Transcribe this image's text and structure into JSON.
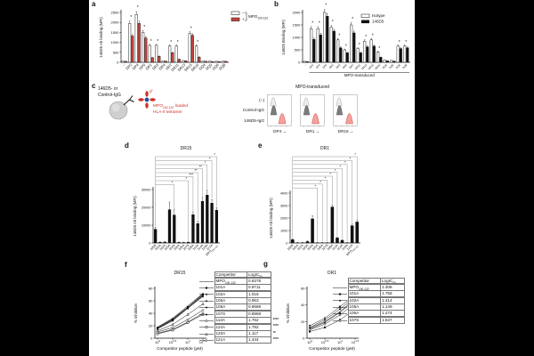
{
  "colors": {
    "bar_red": "#c8453d",
    "flow_red_fill": "#f5a09b",
    "flow_red_stroke": "#d05048",
    "flow_gray_fill": "#7d7d7d",
    "flow_gray_light": "#ededed",
    "tetramer_red": "#cf2e27",
    "tetramer_blue": "#1f4e9c",
    "axis": "#111111",
    "bracket_gray": "#777777"
  },
  "panels": {
    "a": {
      "letter": "a",
      "legend": {
        "minus": "−",
        "plus": "+",
        "bracket": "MPO_{100-132}"
      }
    },
    "b": {
      "letter": "b"
    },
    "c": {
      "letter": "c",
      "ab_label": "146D5- or\nControl-IgG",
      "tetramer_line1": "MPO_{100-132} loaded",
      "tetramer_line2": "HLA-II tetramer",
      "flow": {
        "header": "MPO-transduced",
        "rows": [
          "(−)",
          "Control-IgG",
          "146D5-IgG"
        ],
        "xlabels": [
          "DP4",
          "DR1",
          "DR15"
        ],
        "arrow": "→"
      }
    },
    "d": {
      "letter": "d"
    },
    "e": {
      "letter": "e"
    },
    "f": {
      "letter": "f"
    },
    "g": {
      "letter": "g"
    }
  },
  "chart_data": [
    {
      "id": "a",
      "type": "bar",
      "title": "",
      "ylabel": "146D5 Ab binding (MFI)",
      "ylim": [
        0,
        2500
      ],
      "yticks": [
        0,
        500,
        1000,
        1500,
        2000,
        2500
      ],
      "categories": [
        "−",
        "DP2",
        "DP4",
        "DP5",
        "DR1",
        "DR3",
        "DR4",
        "DR7",
        "DR11",
        "DR13",
        "DR15",
        "DR16",
        "DQ4",
        "DQ5",
        "DQ6",
        "DQ8"
      ],
      "series": [
        {
          "name": "−",
          "values": [
            60,
            1950,
            2400,
            1500,
            850,
            850,
            80,
            820,
            820,
            90,
            1450,
            820,
            70,
            60,
            50,
            60
          ]
        },
        {
          "name": "+",
          "values": [
            50,
            1320,
            1950,
            1220,
            230,
            300,
            60,
            480,
            150,
            80,
            1350,
            260,
            50,
            40,
            40,
            50
          ]
        }
      ],
      "sig": [
        0,
        1,
        1,
        1,
        1,
        1,
        0,
        1,
        1,
        0,
        1,
        1,
        0,
        0,
        0,
        0
      ]
    },
    {
      "id": "b",
      "type": "bar",
      "title": "",
      "ylabel": "146D5 Binding (MFI)",
      "ylim": [
        0,
        2000
      ],
      "yticks": [
        0,
        500,
        1000,
        1500,
        2000
      ],
      "group_label": "MPO-transduced",
      "categories": [
        "−",
        "DP2",
        "DP4",
        "DP5",
        "DR1",
        "DR3",
        "DR4",
        "DR7",
        "DR11",
        "DR13",
        "DR15",
        "DR16",
        "DQ4",
        "DQ5",
        "DQ6",
        "DQ8"
      ],
      "series": [
        {
          "name": "Isotype",
          "values": [
            40,
            1350,
            1350,
            2000,
            1400,
            900,
            500,
            1500,
            550,
            850,
            900,
            420,
            100,
            80,
            650,
            650
          ]
        },
        {
          "name": "146D5",
          "values": [
            30,
            920,
            1100,
            1850,
            1250,
            580,
            380,
            1180,
            380,
            620,
            650,
            200,
            60,
            50,
            550,
            580
          ]
        }
      ],
      "sig": [
        0,
        1,
        1,
        1,
        1,
        1,
        1,
        1,
        1,
        1,
        1,
        1,
        0,
        0,
        1,
        1
      ]
    },
    {
      "id": "d",
      "type": "bar",
      "title": "DR15",
      "ylabel": "146D5 Ab binding (MFI)",
      "ylim": [
        0,
        30000
      ],
      "yticks": [
        0,
        10000,
        20000,
        30000
      ],
      "categories": [
        "100S",
        "101A",
        "102A",
        "103A",
        "104A",
        "105A",
        "106A",
        "107S",
        "108A",
        "113A",
        "114A",
        "120A",
        "121A",
        "MPO_{100-132}"
      ],
      "values": [
        7800,
        500,
        600,
        18800,
        15800,
        450,
        350,
        500,
        16000,
        11000,
        23500,
        27000,
        22500,
        18500
      ],
      "errors": [
        1000,
        120,
        150,
        4200,
        3200,
        100,
        90,
        120,
        1500,
        1300,
        2200,
        2600,
        1800,
        1400
      ],
      "brackets": [
        {
          "to": 13,
          "label": "*"
        },
        {
          "to": 12,
          "label": "*"
        },
        {
          "to": 11,
          "label": "*"
        },
        {
          "to": 10,
          "label": "**"
        },
        {
          "to": 9,
          "label": "**"
        },
        {
          "to": 8,
          "label": "***"
        },
        {
          "to": 7,
          "label": "*"
        },
        {
          "to": 4,
          "label": "*"
        }
      ]
    },
    {
      "id": "e",
      "type": "bar",
      "title": "DR1",
      "ylabel": "146D5 Ab binding (MFI)",
      "ylim": [
        0,
        4000
      ],
      "yticks": [
        0,
        1000,
        2000,
        3000,
        4000
      ],
      "categories": [
        "100S",
        "101A",
        "102A",
        "103A",
        "104A",
        "105A",
        "106A",
        "107S",
        "108A",
        "113A",
        "114A",
        "120A",
        "121A",
        "MPO_{100-132}"
      ],
      "values": [
        280,
        30,
        30,
        130,
        1950,
        30,
        30,
        30,
        2900,
        420,
        230,
        30,
        1400,
        1700
      ],
      "errors": [
        70,
        15,
        15,
        45,
        220,
        15,
        15,
        15,
        160,
        70,
        50,
        15,
        130,
        160
      ],
      "brackets": [
        {
          "to": 13,
          "label": "*"
        },
        {
          "to": 12,
          "label": "*"
        },
        {
          "to": 11,
          "label": "*"
        },
        {
          "to": 10,
          "label": "*"
        },
        {
          "to": 9,
          "label": "*"
        },
        {
          "to": 8,
          "label": "*"
        },
        {
          "to": 7,
          "label": "*"
        },
        {
          "to": 6,
          "label": "*"
        },
        {
          "to": 5,
          "label": "*"
        }
      ]
    },
    {
      "id": "f",
      "type": "line",
      "title": "DR15",
      "ylabel": "% inhibition",
      "xlabel": "Competitor peptide (μM)",
      "ylim": [
        0,
        80
      ],
      "yticks": [
        0,
        20,
        40,
        60,
        80
      ],
      "x": [
        1,
        3.16,
        10,
        31.6
      ],
      "xticklabels": [
        "10^{0}",
        "10^{0.5}",
        "10^{1}",
        "10^{1.5}"
      ],
      "series": [
        {
          "name": "MPO_{100-132}",
          "marker": "line",
          "values": [
            18,
            32,
            52,
            72
          ]
        },
        {
          "name": "101A",
          "marker": "square",
          "values": [
            16,
            30,
            50,
            70
          ]
        },
        {
          "name": "102A",
          "marker": "triangle",
          "values": [
            15,
            29,
            48,
            68
          ]
        },
        {
          "name": "105A",
          "marker": "triangleDown",
          "values": [
            16,
            30,
            49,
            69
          ]
        },
        {
          "name": "106A",
          "marker": "diamond",
          "values": [
            15,
            28,
            48,
            67
          ]
        },
        {
          "name": "107S",
          "marker": "circle",
          "values": [
            17,
            31,
            50,
            71
          ]
        },
        {
          "name": "113A",
          "marker": "circleOpen",
          "values": [
            8,
            14,
            26,
            40
          ]
        },
        {
          "name": "114A",
          "marker": "squareOpen",
          "values": [
            7,
            13,
            25,
            38
          ]
        },
        {
          "name": "120A",
          "marker": "triangleOpen",
          "values": [
            12,
            22,
            38,
            55
          ]
        },
        {
          "name": "121A",
          "marker": "diamondOpen",
          "values": [
            10,
            17,
            30,
            45
          ]
        }
      ]
    },
    {
      "id": "g",
      "type": "line",
      "title": "DR1",
      "ylabel": "% inhibition",
      "xlabel": "Competitor peptide (μM)",
      "ylim": [
        0,
        60
      ],
      "yticks": [
        0,
        20,
        40,
        60
      ],
      "x": [
        1,
        3.16,
        10,
        31.6
      ],
      "xticklabels": [
        "10^{0}",
        "10^{0.5}",
        "10^{1}",
        "10^{1.5}"
      ],
      "series": [
        {
          "name": "MPO_{100-132}",
          "marker": "line",
          "values": [
            12,
            20,
            32,
            48
          ]
        },
        {
          "name": "101A",
          "marker": "square",
          "values": [
            8,
            13,
            22,
            35
          ]
        },
        {
          "name": "102A",
          "marker": "triangle",
          "values": [
            11,
            19,
            31,
            46
          ]
        },
        {
          "name": "105A",
          "marker": "triangleDown",
          "values": [
            15,
            24,
            38,
            52
          ]
        },
        {
          "name": "106A",
          "marker": "diamond",
          "values": [
            13,
            22,
            35,
            50
          ]
        },
        {
          "name": "107S",
          "marker": "circleOpen",
          "values": [
            10,
            17,
            28,
            42
          ]
        }
      ]
    }
  ],
  "tables": {
    "f": {
      "headers": [
        "Competitor",
        "LogIC_{50}"
      ],
      "rows": [
        {
          "competitor": "MPO_{100-132}",
          "logic50": "0.8378",
          "sig": ""
        },
        {
          "competitor": "101A",
          "logic50": "0.9711",
          "sig": ""
        },
        {
          "competitor": "102A",
          "logic50": "1.016",
          "sig": ""
        },
        {
          "competitor": "105A",
          "logic50": "0.953",
          "sig": ""
        },
        {
          "competitor": "106A",
          "logic50": "0.9688",
          "sig": ""
        },
        {
          "competitor": "107S",
          "logic50": "0.8958",
          "sig": ""
        },
        {
          "competitor": "113A",
          "logic50": "1.762",
          "sig": "****"
        },
        {
          "competitor": "114A",
          "logic50": "1.792",
          "sig": "****"
        },
        {
          "competitor": "120A",
          "logic50": "1.117",
          "sig": "**"
        },
        {
          "competitor": "121A",
          "logic50": "1.444",
          "sig": "****"
        }
      ]
    },
    "g": {
      "headers": [
        "Competitor",
        "LogIC_{50}"
      ],
      "rows": [
        {
          "competitor": "MPO_{100-132}",
          "logic50": "1.408",
          "sig": ""
        },
        {
          "competitor": "101A",
          "logic50": "1.758",
          "sig": ""
        },
        {
          "competitor": "102A",
          "logic50": "1.414",
          "sig": ""
        },
        {
          "competitor": "105A",
          "logic50": "1.149",
          "sig": ""
        },
        {
          "competitor": "106A",
          "logic50": "1.274",
          "sig": ""
        },
        {
          "competitor": "107S",
          "logic50": "1.537",
          "sig": ""
        }
      ]
    }
  }
}
